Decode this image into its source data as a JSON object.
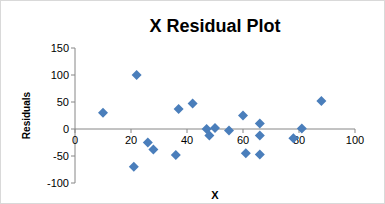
{
  "chart_data": {
    "type": "scatter",
    "title": "X Residual Plot",
    "x_label": "X",
    "y_label": "Residuals",
    "x": [
      10,
      21,
      22,
      26,
      28,
      36,
      37,
      42,
      47,
      48,
      50,
      55,
      60,
      61,
      66,
      66,
      66,
      78,
      81,
      88
    ],
    "values": [
      30,
      -70,
      100,
      -25,
      -38,
      -48,
      37,
      47,
      0,
      -12,
      2,
      -3,
      25,
      -45,
      10,
      -12,
      -47,
      -17,
      1,
      52
    ],
    "color": "#4a7ebb",
    "marker": "diamond",
    "xlim": [
      0,
      100
    ],
    "xticks": [
      0,
      20,
      40,
      60,
      80,
      100
    ],
    "ylim": [
      -100,
      150
    ],
    "yticks": [
      -100,
      -50,
      0,
      50,
      100,
      150
    ],
    "grid": false
  }
}
